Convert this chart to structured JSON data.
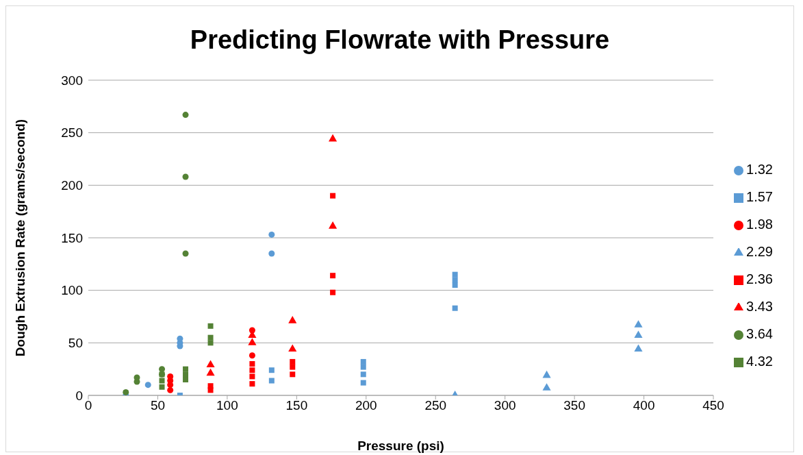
{
  "chart_data": {
    "type": "scatter",
    "title": "Predicting Flowrate with Pressure",
    "xlabel": "Pressure (psi)",
    "ylabel": "Dough Extrusion Rate (grams/second)",
    "xlim": [
      0,
      450
    ],
    "xticks": [
      0,
      50,
      100,
      150,
      200,
      250,
      300,
      350,
      400,
      450
    ],
    "ylim": [
      0,
      300
    ],
    "yticks": [
      0,
      50,
      100,
      150,
      200,
      250,
      300
    ],
    "grid": "y",
    "legend": "right",
    "series": [
      {
        "name": "1.32",
        "color": "#5b9bd5",
        "marker": "circle",
        "x": [
          27,
          43,
          66,
          66,
          66,
          132,
          132
        ],
        "values": [
          0,
          10,
          47,
          50,
          54,
          135,
          153
        ]
      },
      {
        "name": "1.57",
        "color": "#5b9bd5",
        "marker": "square",
        "x": [
          66,
          132,
          132,
          198,
          198,
          198,
          198,
          264,
          264,
          264,
          264
        ],
        "values": [
          0,
          14,
          24,
          12,
          20,
          27,
          32,
          83,
          105,
          110,
          115
        ]
      },
      {
        "name": "1.98",
        "color": "#ff0000",
        "marker": "circle",
        "x": [
          59,
          59,
          59,
          59,
          118,
          118
        ],
        "values": [
          5,
          10,
          14,
          18,
          38,
          62
        ]
      },
      {
        "name": "2.29",
        "color": "#5b9bd5",
        "marker": "triangle",
        "x": [
          264,
          330,
          330,
          396,
          396,
          396
        ],
        "values": [
          0,
          7,
          19,
          44,
          57,
          67
        ]
      },
      {
        "name": "2.36",
        "color": "#ff0000",
        "marker": "square",
        "x": [
          88,
          88,
          118,
          118,
          118,
          118,
          147,
          147,
          147,
          176,
          176,
          176
        ],
        "values": [
          5,
          9,
          11,
          18,
          24,
          30,
          20,
          27,
          32,
          98,
          114,
          190
        ]
      },
      {
        "name": "3.43",
        "color": "#ff0000",
        "marker": "triangle",
        "x": [
          88,
          88,
          118,
          118,
          147,
          147,
          176,
          176
        ],
        "values": [
          21,
          29,
          50,
          57,
          44,
          71,
          161,
          244
        ]
      },
      {
        "name": "3.64",
        "color": "#548235",
        "marker": "circle",
        "x": [
          27,
          35,
          35,
          53,
          53,
          70,
          70,
          70
        ],
        "values": [
          3,
          13,
          17,
          20,
          25,
          135,
          208,
          267
        ]
      },
      {
        "name": "4.32",
        "color": "#548235",
        "marker": "square",
        "x": [
          53,
          53,
          53,
          70,
          70,
          70,
          88,
          88,
          88
        ],
        "values": [
          8,
          14,
          20,
          15,
          20,
          25,
          50,
          55,
          66
        ]
      }
    ]
  }
}
